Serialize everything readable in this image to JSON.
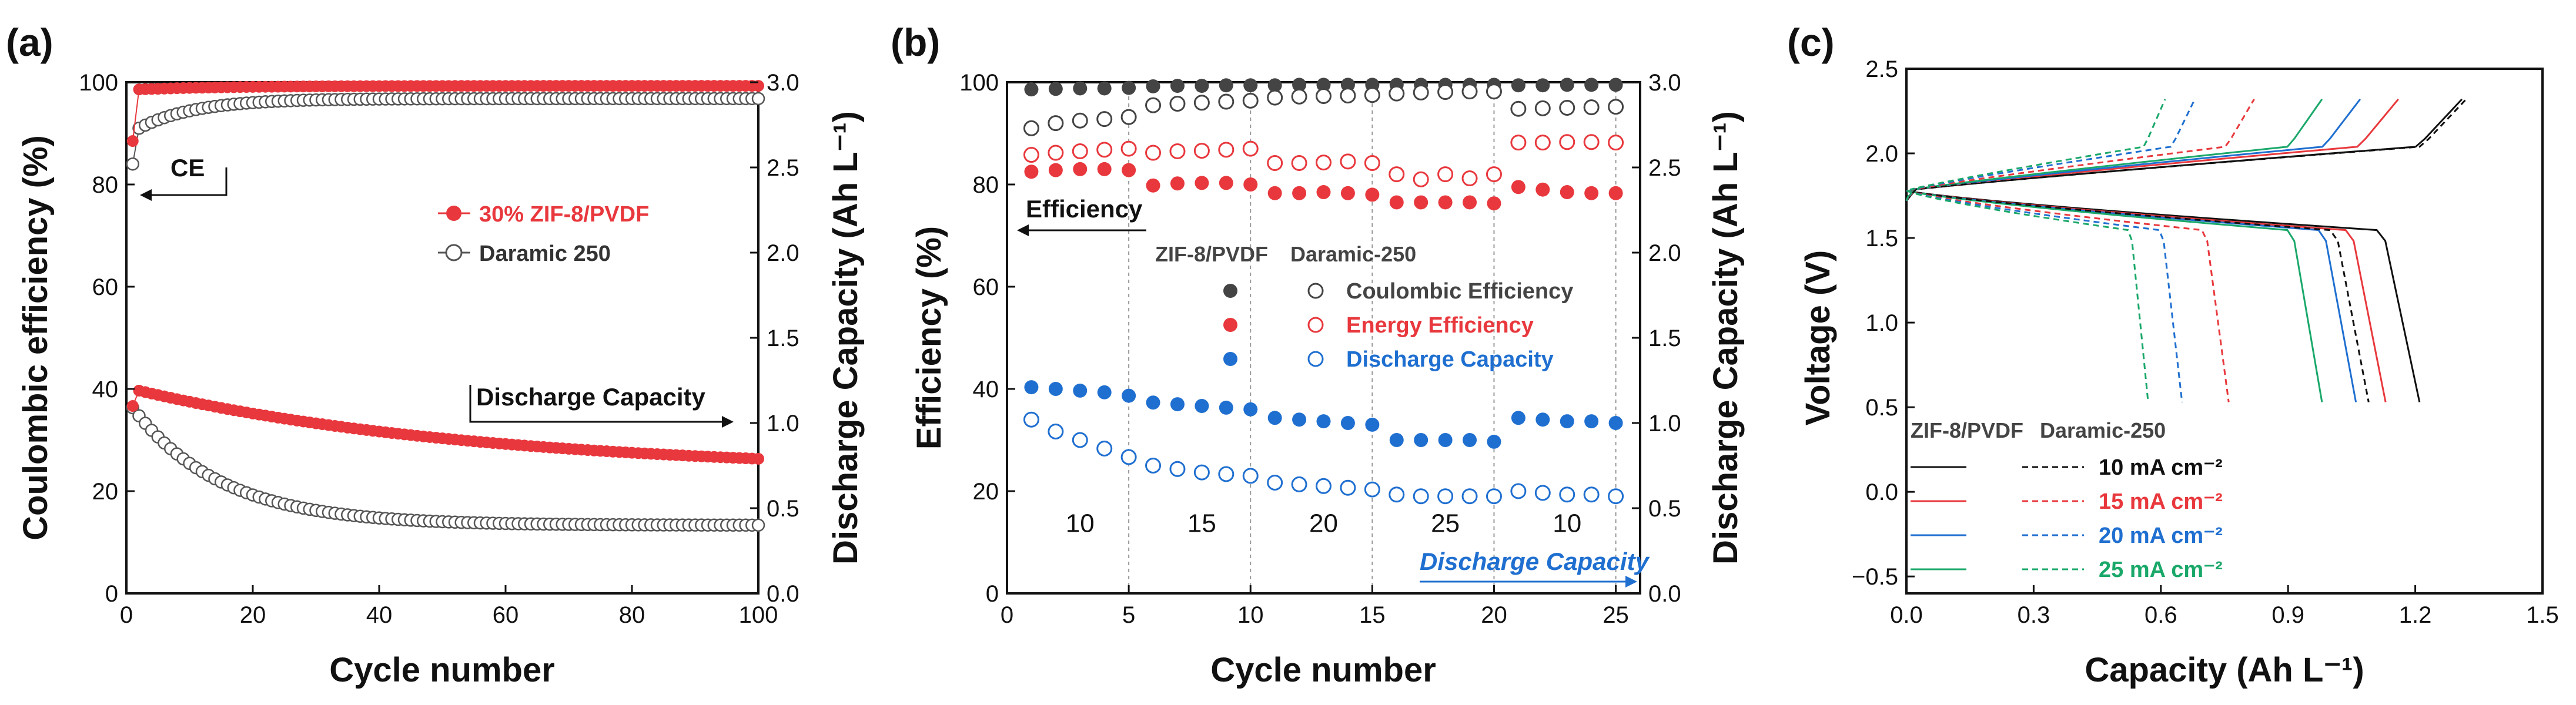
{
  "chart_data": [
    {
      "panel": "(a)",
      "type": "scatter",
      "xlabel": "Cycle number",
      "ylabel": "Coulombic efficiency (%)",
      "ylabel_right": "Discharge Capacity (Ah L⁻¹)",
      "xlim": [
        0,
        100
      ],
      "ylim": [
        0,
        100
      ],
      "ylim_right": [
        0,
        3.0
      ],
      "xticks": [
        "0",
        "20",
        "40",
        "60",
        "80",
        "100"
      ],
      "yticks": [
        "0",
        "20",
        "40",
        "60",
        "80",
        "100"
      ],
      "yticks_right": [
        "0.0",
        "0.5",
        "1.0",
        "1.5",
        "2.0",
        "2.5",
        "3.0"
      ],
      "annotations": {
        "ce": "CE",
        "capacity": "Discharge Capacity"
      },
      "series": [
        {
          "name": "30% ZIF-8/PVDF",
          "color": "#e8383d",
          "marker": "filled",
          "axis": "left",
          "first": 88.5,
          "plateau": 98.5,
          "plateau_end": 99.3
        },
        {
          "name": "Daramic 250",
          "color": "#555555",
          "marker": "open",
          "axis": "left",
          "first": 84,
          "plateau": 91,
          "plateau_end": 96.8
        },
        {
          "name": "30% ZIF-8/PVDF capacity",
          "color": "#e8383d",
          "marker": "filled",
          "axis": "right",
          "start": 1.1,
          "peak": 1.19,
          "end": 0.79
        },
        {
          "name": "Daramic 250 capacity",
          "color": "#555555",
          "marker": "open",
          "axis": "right",
          "start": 1.09,
          "end": 0.4
        }
      ]
    },
    {
      "panel": "(b)",
      "type": "scatter",
      "xlabel": "Cycle number",
      "ylabel": "Efficiency (%)",
      "ylabel_right": "Discharge Capacity (Ah L⁻¹)",
      "xlim": [
        0,
        26
      ],
      "ylim": [
        0,
        100
      ],
      "ylim_right": [
        0,
        3.0
      ],
      "xticks": [
        "0",
        "5",
        "10",
        "15",
        "20",
        "25"
      ],
      "yticks": [
        "0",
        "20",
        "40",
        "60",
        "80",
        "100"
      ],
      "yticks_right": [
        "0.0",
        "0.5",
        "1.0",
        "1.5",
        "2.0",
        "2.5",
        "3.0"
      ],
      "legend_headers": [
        "ZIF-8/PVDF",
        "Daramic-250"
      ],
      "legend_entries": [
        "Coulombic Efficiency",
        "Energy Efficiency",
        "Discharge Capacity"
      ],
      "region_labels": [
        "10",
        "15",
        "20",
        "25",
        "10"
      ],
      "annotations": {
        "efficiency": "Efficiency",
        "capacity": "Discharge Capacity"
      },
      "cycles": [
        1,
        2,
        3,
        4,
        5,
        6,
        7,
        8,
        9,
        10,
        11,
        12,
        13,
        14,
        15,
        16,
        17,
        18,
        19,
        20,
        21,
        22,
        23,
        24,
        25
      ],
      "series": [
        {
          "name": "ZIF-8/PVDF Coulombic Efficiency",
          "color": "#444444",
          "marker": "filled",
          "axis": "left",
          "values": [
            98.6,
            98.7,
            98.8,
            98.8,
            98.9,
            99.2,
            99.3,
            99.3,
            99.4,
            99.4,
            99.4,
            99.5,
            99.5,
            99.5,
            99.5,
            99.5,
            99.5,
            99.5,
            99.5,
            99.5,
            99.4,
            99.4,
            99.5,
            99.5,
            99.5
          ]
        },
        {
          "name": "Daramic-250 Coulombic Efficiency",
          "color": "#444444",
          "marker": "open",
          "axis": "left",
          "values": [
            91.0,
            92.0,
            92.5,
            92.8,
            93.2,
            95.5,
            95.8,
            96.0,
            96.2,
            96.4,
            97.0,
            97.2,
            97.3,
            97.4,
            97.5,
            97.8,
            98.0,
            98.1,
            98.2,
            98.2,
            94.8,
            94.9,
            95.0,
            95.1,
            95.2
          ]
        },
        {
          "name": "ZIF-8/PVDF Energy Efficiency",
          "color": "#e8383d",
          "marker": "filled",
          "axis": "left",
          "values": [
            82.5,
            82.8,
            83.0,
            83.0,
            82.8,
            79.8,
            80.2,
            80.3,
            80.3,
            80.0,
            78.3,
            78.3,
            78.5,
            78.3,
            78.0,
            76.5,
            76.5,
            76.5,
            76.5,
            76.3,
            79.5,
            79.0,
            78.5,
            78.3,
            78.3
          ]
        },
        {
          "name": "Daramic-250 Energy Efficiency",
          "color": "#e8383d",
          "marker": "open",
          "axis": "left",
          "values": [
            85.8,
            86.2,
            86.5,
            86.8,
            87.0,
            86.2,
            86.5,
            86.6,
            86.8,
            87.0,
            84.2,
            84.2,
            84.3,
            84.5,
            84.2,
            82.0,
            81.0,
            82.0,
            81.2,
            82.0,
            88.2,
            88.2,
            88.3,
            88.3,
            88.2
          ]
        },
        {
          "name": "ZIF-8/PVDF Discharge Capacity",
          "color": "#1f6fd0",
          "marker": "filled",
          "axis": "right",
          "values": [
            1.21,
            1.2,
            1.19,
            1.18,
            1.16,
            1.12,
            1.11,
            1.1,
            1.09,
            1.08,
            1.03,
            1.02,
            1.01,
            1.0,
            0.99,
            0.9,
            0.9,
            0.9,
            0.9,
            0.89,
            1.03,
            1.02,
            1.01,
            1.01,
            1.0
          ]
        },
        {
          "name": "Daramic-250 Discharge Capacity",
          "color": "#1f6fd0",
          "marker": "open",
          "axis": "right",
          "values": [
            1.02,
            0.95,
            0.9,
            0.85,
            0.8,
            0.75,
            0.73,
            0.71,
            0.7,
            0.69,
            0.65,
            0.64,
            0.63,
            0.62,
            0.61,
            0.58,
            0.57,
            0.57,
            0.57,
            0.57,
            0.6,
            0.59,
            0.58,
            0.58,
            0.57
          ]
        }
      ]
    },
    {
      "panel": "(c)",
      "type": "line",
      "xlabel": "Capacity (Ah L⁻¹)",
      "ylabel": "Voltage (V)",
      "xlim": [
        0,
        1.5
      ],
      "ylim": [
        -0.6,
        2.5
      ],
      "xticks": [
        "0.0",
        "0.3",
        "0.6",
        "0.9",
        "1.2",
        "1.5"
      ],
      "yticks": [
        "−0.5",
        "0.0",
        "0.5",
        "1.0",
        "1.5",
        "2.0",
        "2.5"
      ],
      "legend_headers": [
        "ZIF-8/PVDF",
        "Daramic-250"
      ],
      "legend_entries": [
        {
          "label": "10 mA cm⁻²",
          "color": "#111111"
        },
        {
          "label": "15 mA cm⁻²",
          "color": "#e8383d"
        },
        {
          "label": "20 mA cm⁻²",
          "color": "#1f6fd0"
        },
        {
          "label": "25 mA cm⁻²",
          "color": "#1aa86a"
        }
      ],
      "series": [
        {
          "name": "ZIF-8/PVDF 10 mA cm⁻²",
          "color": "#111111",
          "dash": "solid",
          "charge_end": 1.31,
          "discharge_end": 1.21
        },
        {
          "name": "ZIF-8/PVDF 15 mA cm⁻²",
          "color": "#e8383d",
          "dash": "solid",
          "charge_end": 1.16,
          "discharge_end": 1.13
        },
        {
          "name": "ZIF-8/PVDF 20 mA cm⁻²",
          "color": "#1f6fd0",
          "dash": "solid",
          "charge_end": 1.07,
          "discharge_end": 1.06
        },
        {
          "name": "ZIF-8/PVDF 25 mA cm⁻²",
          "color": "#1aa86a",
          "dash": "solid",
          "charge_end": 0.98,
          "discharge_end": 0.98
        },
        {
          "name": "Daramic-250 10 mA cm⁻²",
          "color": "#111111",
          "dash": "dashed",
          "charge_end": 1.32,
          "discharge_end": 1.09
        },
        {
          "name": "Daramic-250 15 mA cm⁻²",
          "color": "#e8383d",
          "dash": "dashed",
          "charge_end": 0.82,
          "discharge_end": 0.76
        },
        {
          "name": "Daramic-250 20 mA cm⁻²",
          "color": "#1f6fd0",
          "dash": "dashed",
          "charge_end": 0.68,
          "discharge_end": 0.65
        },
        {
          "name": "Daramic-250 25 mA cm⁻²",
          "color": "#1aa86a",
          "dash": "dashed",
          "charge_end": 0.61,
          "discharge_end": 0.57
        }
      ]
    }
  ]
}
